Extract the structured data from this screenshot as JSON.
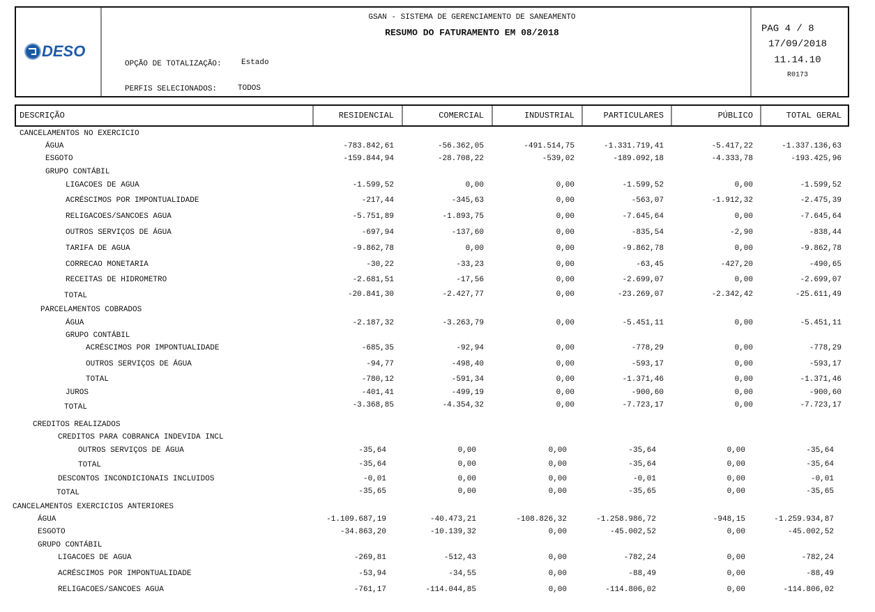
{
  "header": {
    "logo": "DESO",
    "system": "GSAN - SISTEMA DE GERENCIAMENTO DE SANEAMENTO",
    "title": "RESUMO DO FATURAMENTO EM 08/2018",
    "option_label": "OPÇÃO DE TOTALIZAÇÃO:",
    "option_value": "Estado",
    "profiles_label": "PERFIS SELECIONADOS:",
    "profiles_value": "TODOS",
    "page": "PAG 4 / 8",
    "date": "17/09/2018",
    "time": "11.14.10",
    "report_code": "R0173"
  },
  "table": {
    "columns": [
      "DESCRIÇÃO",
      "RESIDENCIAL",
      "COMERCIAL",
      "INDUSTRIAL",
      "PARTICULARES",
      "PÚBLICO",
      "TOTAL GERAL"
    ],
    "rows": [
      {
        "label": "CANCELAMENTOS NO EXERCICIO"
      },
      {
        "label": "ÁGUA",
        "values": [
          "-783.842,61",
          "-56.362,05",
          "-491.514,75",
          "-1.331.719,41",
          "-5.417,22",
          "-1.337.136,63"
        ]
      },
      {
        "label": "ESGOTO",
        "values": [
          "-159.844,94",
          "-28.708,22",
          "-539,02",
          "-189.092,18",
          "-4.333,78",
          "-193.425,96"
        ]
      },
      {
        "label": "GRUPO CONTÁBIL"
      },
      {
        "label": "LIGACOES DE AGUA",
        "values": [
          "-1.599,52",
          "0,00",
          "0,00",
          "-1.599,52",
          "0,00",
          "-1.599,52"
        ]
      },
      {
        "label": "ACRÉSCIMOS POR IMPONTUALIDADE",
        "values": [
          "-217,44",
          "-345,63",
          "0,00",
          "-563,07",
          "-1.912,32",
          "-2.475,39"
        ]
      },
      {
        "label": "RELIGACOES/SANCOES AGUA",
        "values": [
          "-5.751,89",
          "-1.893,75",
          "0,00",
          "-7.645,64",
          "0,00",
          "-7.645,64"
        ]
      },
      {
        "label": "OUTROS SERVIÇOS DE ÁGUA",
        "values": [
          "-697,94",
          "-137,60",
          "0,00",
          "-835,54",
          "-2,90",
          "-838,44"
        ]
      },
      {
        "label": "TARIFA DE AGUA",
        "values": [
          "-9.862,78",
          "0,00",
          "0,00",
          "-9.862,78",
          "0,00",
          "-9.862,78"
        ]
      },
      {
        "label": "CORRECAO MONETARIA",
        "values": [
          "-30,22",
          "-33,23",
          "0,00",
          "-63,45",
          "-427,20",
          "-490,65"
        ]
      },
      {
        "label": "RECEITAS DE HIDROMETRO",
        "values": [
          "-2.681,51",
          "-17,56",
          "0,00",
          "-2.699,07",
          "0,00",
          "-2.699,07"
        ]
      },
      {
        "label": "TOTAL",
        "values": [
          "-20.841,30",
          "-2.427,77",
          "0,00",
          "-23.269,07",
          "-2.342,42",
          "-25.611,49"
        ]
      },
      {
        "label": "PARCELAMENTOS COBRADOS"
      },
      {
        "label": "ÁGUA",
        "values": [
          "-2.187,32",
          "-3.263,79",
          "0,00",
          "-5.451,11",
          "0,00",
          "-5.451,11"
        ]
      },
      {
        "label": "GRUPO CONTÁBIL"
      },
      {
        "label": "ACRÉSCIMOS POR IMPONTUALIDADE",
        "values": [
          "-685,35",
          "-92,94",
          "0,00",
          "-778,29",
          "0,00",
          "-778,29"
        ]
      },
      {
        "label": "OUTROS SERVIÇOS DE ÁGUA",
        "values": [
          "-94,77",
          "-498,40",
          "0,00",
          "-593,17",
          "0,00",
          "-593,17"
        ]
      },
      {
        "label": "TOTAL",
        "values": [
          "-780,12",
          "-591,34",
          "0,00",
          "-1.371,46",
          "0,00",
          "-1.371,46"
        ]
      },
      {
        "label": "JUROS",
        "values": [
          "-401,41",
          "-499,19",
          "0,00",
          "-900,60",
          "0,00",
          "-900,60"
        ]
      },
      {
        "label": "TOTAL",
        "values": [
          "-3.368,85",
          "-4.354,32",
          "0,00",
          "-7.723,17",
          "0,00",
          "-7.723,17"
        ]
      },
      {
        "label": "CREDITOS REALIZADOS"
      },
      {
        "label": "CREDITOS PARA COBRANCA INDEVIDA INCL"
      },
      {
        "label": "OUTROS SERVIÇOS DE ÁGUA",
        "values": [
          "-35,64",
          "0,00",
          "0,00",
          "-35,64",
          "0,00",
          "-35,64"
        ]
      },
      {
        "label": "TOTAL",
        "values": [
          "-35,64",
          "0,00",
          "0,00",
          "-35,64",
          "0,00",
          "-35,64"
        ]
      },
      {
        "label": "DESCONTOS INCONDICIONAIS INCLUIDOS",
        "values": [
          "-0,01",
          "0,00",
          "0,00",
          "-0,01",
          "0,00",
          "-0,01"
        ]
      },
      {
        "label": "TOTAL",
        "values": [
          "-35,65",
          "0,00",
          "0,00",
          "-35,65",
          "0,00",
          "-35,65"
        ]
      },
      {
        "label": "CANCELAMENTOS EXERCICIOS ANTERIORES"
      },
      {
        "label": "ÁGUA",
        "values": [
          "-1.109.687,19",
          "-40.473,21",
          "-108.826,32",
          "-1.258.986,72",
          "-948,15",
          "-1.259.934,87"
        ]
      },
      {
        "label": "ESGOTO",
        "values": [
          "-34.863,20",
          "-10.139,32",
          "0,00",
          "-45.002,52",
          "0,00",
          "-45.002,52"
        ]
      },
      {
        "label": "GRUPO CONTÁBIL"
      },
      {
        "label": "LIGACOES DE AGUA",
        "values": [
          "-269,81",
          "-512,43",
          "0,00",
          "-782,24",
          "0,00",
          "-782,24"
        ]
      },
      {
        "label": "ACRÉSCIMOS POR IMPONTUALIDADE",
        "values": [
          "-53,94",
          "-34,55",
          "0,00",
          "-88,49",
          "0,00",
          "-88,49"
        ]
      },
      {
        "label": "RELIGACOES/SANCOES AGUA",
        "values": [
          "-761,17",
          "-114.044,85",
          "0,00",
          "-114.806,02",
          "0,00",
          "-114.806,02"
        ]
      }
    ]
  }
}
